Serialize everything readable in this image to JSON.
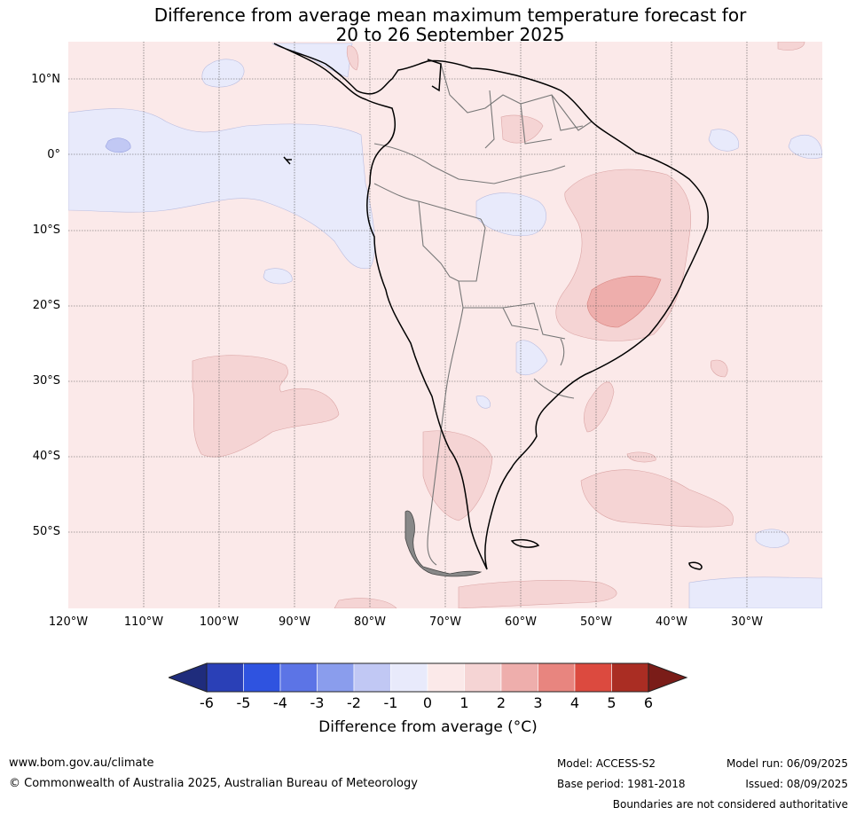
{
  "title": {
    "line1": "Difference from average mean maximum temperature forecast for",
    "line2": "20 to 26 September 2025"
  },
  "axes": {
    "lat_labels": [
      "10°N",
      "0°",
      "10°S",
      "20°S",
      "30°S",
      "40°S",
      "50°S"
    ],
    "lon_labels": [
      "120°W",
      "110°W",
      "100°W",
      "90°W",
      "80°W",
      "70°W",
      "60°W",
      "50°W",
      "40°W",
      "30°W"
    ]
  },
  "colorbar": {
    "ticks": [
      "-6",
      "-5",
      "-4",
      "-3",
      "-2",
      "-1",
      "0",
      "1",
      "2",
      "3",
      "4",
      "5",
      "6"
    ],
    "colors": [
      "#1f2c7c",
      "#2a40b7",
      "#2f53e0",
      "#5c74e6",
      "#8a9ded",
      "#c1c8f4",
      "#e8eafb",
      "#fbe9e9",
      "#f5d4d4",
      "#eeaeac",
      "#e8857f",
      "#dc4a3f",
      "#aa2d23",
      "#7a1c18"
    ],
    "label": "Difference from average (°C)"
  },
  "footer": {
    "url": "www.bom.gov.au/climate",
    "copyright": "© Commonwealth of Australia 2025, Australian Bureau of Meteorology",
    "model": "Model: ACCESS-S2",
    "base_period": "Base period: 1981-2018",
    "model_run": "Model run: 06/09/2025",
    "issued": "Issued: 08/09/2025",
    "disclaimer": "Boundaries are not considered authoritative"
  }
}
